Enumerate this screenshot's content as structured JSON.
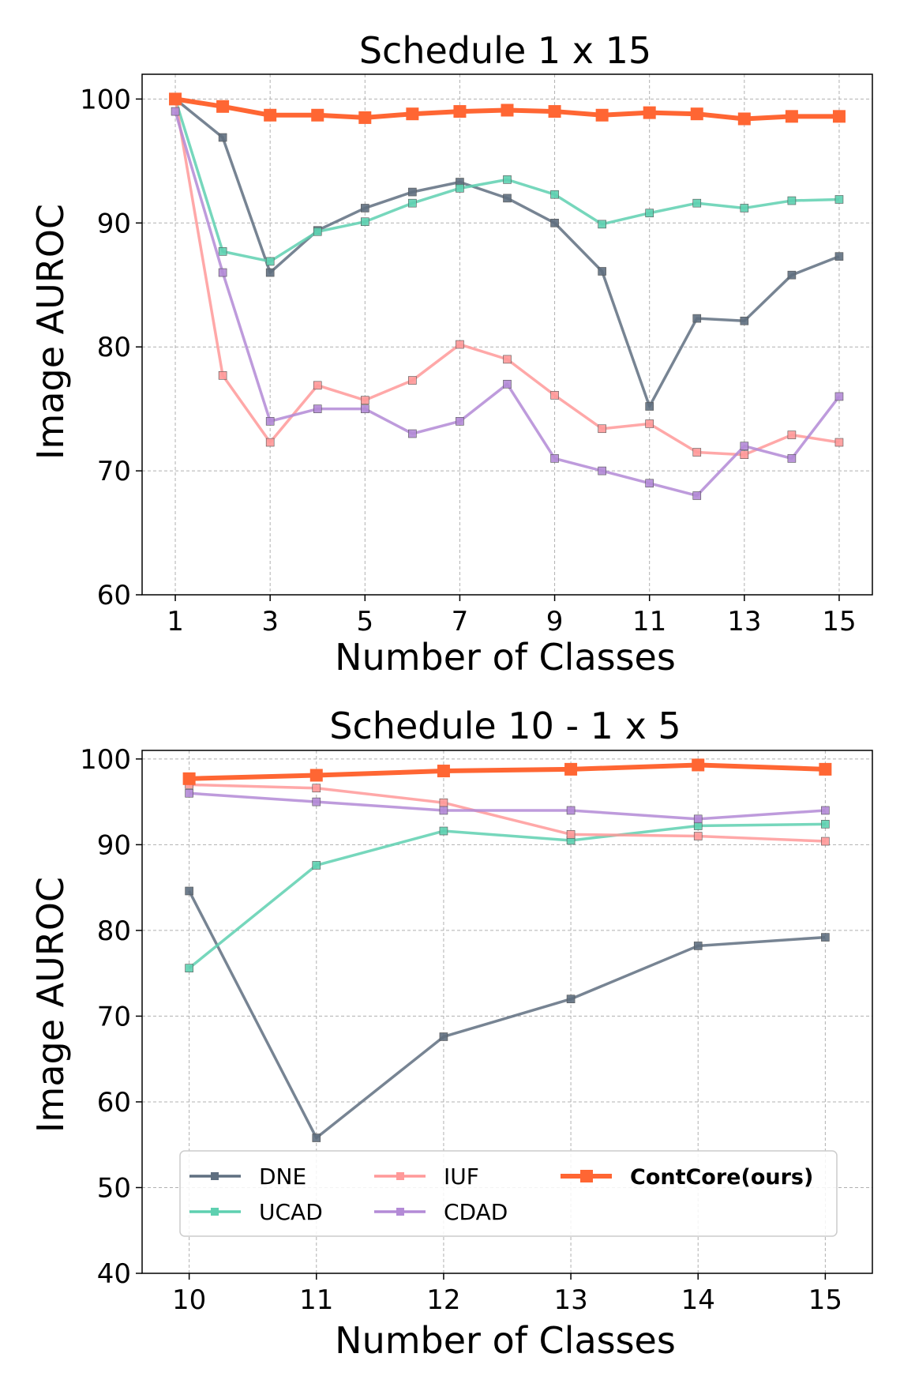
{
  "chart_data": [
    {
      "type": "line",
      "title": "Schedule 1 x 15",
      "xlabel": "Number of Classes",
      "ylabel": "Image AUROC",
      "xlim": [
        0.3,
        15.7
      ],
      "ylim": [
        60,
        102
      ],
      "xticks": [
        1,
        3,
        5,
        7,
        9,
        11,
        13,
        15
      ],
      "yticks": [
        60,
        70,
        80,
        90,
        100
      ],
      "grid": true,
      "x": [
        1,
        2,
        3,
        4,
        5,
        6,
        7,
        8,
        9,
        10,
        11,
        12,
        13,
        14,
        15
      ],
      "series": [
        {
          "name": "DNE",
          "color": "#5f6f80",
          "values": [
            100,
            96.9,
            86.0,
            89.4,
            91.2,
            92.5,
            93.3,
            92.0,
            90.0,
            86.1,
            75.2,
            82.3,
            82.1,
            85.8,
            87.3
          ]
        },
        {
          "name": "UCAD",
          "color": "#5ed0b0",
          "values": [
            100,
            87.7,
            86.9,
            89.3,
            90.1,
            91.6,
            92.8,
            93.5,
            92.3,
            89.9,
            90.8,
            91.6,
            91.2,
            91.8,
            91.9
          ]
        },
        {
          "name": "IUF",
          "color": "#ff9999",
          "values": [
            100,
            77.7,
            72.3,
            76.9,
            75.7,
            77.3,
            80.2,
            79.0,
            76.1,
            73.4,
            73.8,
            71.5,
            71.3,
            72.9,
            72.3
          ]
        },
        {
          "name": "CDAD",
          "color": "#b38ad6",
          "values": [
            99,
            86.0,
            74.0,
            75.0,
            75.0,
            73.0,
            74.0,
            77.0,
            71.0,
            70.0,
            69.0,
            68.0,
            72.0,
            71.0,
            76.0
          ]
        },
        {
          "name": "ContCore(ours)",
          "color": "#ff6633",
          "values": [
            100,
            99.4,
            98.7,
            98.7,
            98.5,
            98.8,
            99.0,
            99.1,
            99.0,
            98.7,
            98.9,
            98.8,
            98.4,
            98.6,
            98.6
          ]
        }
      ]
    },
    {
      "type": "line",
      "title": "Schedule 10 - 1 x 5",
      "xlabel": "Number of Classes",
      "ylabel": "Image AUROC",
      "xlim": [
        9.63,
        15.37
      ],
      "ylim": [
        40,
        101
      ],
      "xticks": [
        10,
        11,
        12,
        13,
        14,
        15
      ],
      "yticks": [
        40,
        50,
        60,
        70,
        80,
        90,
        100
      ],
      "grid": true,
      "legend": "lower center",
      "x": [
        10,
        11,
        12,
        13,
        14,
        15
      ],
      "series": [
        {
          "name": "DNE",
          "color": "#5f6f80",
          "values": [
            84.6,
            55.8,
            67.6,
            72.0,
            78.2,
            79.2
          ]
        },
        {
          "name": "UCAD",
          "color": "#5ed0b0",
          "values": [
            75.6,
            87.6,
            91.6,
            90.5,
            92.2,
            92.4
          ]
        },
        {
          "name": "IUF",
          "color": "#ff9999",
          "values": [
            97.0,
            96.6,
            94.9,
            91.2,
            91.0,
            90.4
          ]
        },
        {
          "name": "CDAD",
          "color": "#b38ad6",
          "values": [
            96.0,
            95.0,
            94.0,
            94.0,
            93.0,
            94.0
          ]
        },
        {
          "name": "ContCore(ours)",
          "color": "#ff6633",
          "values": [
            97.7,
            98.1,
            98.6,
            98.8,
            99.3,
            98.8
          ]
        }
      ]
    }
  ],
  "legend": {
    "entries": [
      "DNE",
      "IUF",
      "ContCore(ours)",
      "UCAD",
      "CDAD"
    ]
  }
}
